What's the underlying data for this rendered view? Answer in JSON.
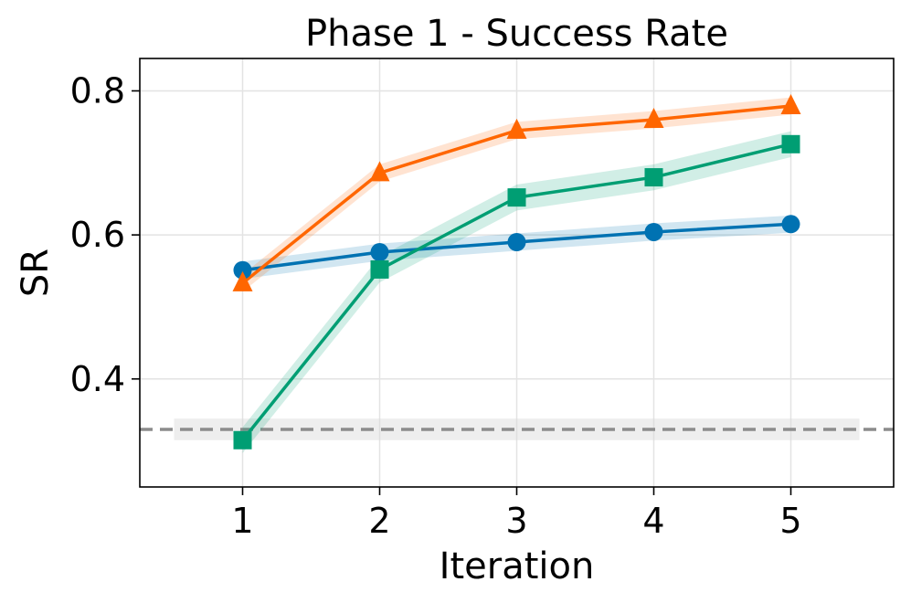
{
  "chart_data": {
    "type": "line",
    "title": "Phase 1 - Success Rate",
    "xlabel": "Iteration",
    "ylabel": "SR",
    "x": [
      1,
      2,
      3,
      4,
      5
    ],
    "x_ticks": [
      "1",
      "2",
      "3",
      "4",
      "5"
    ],
    "y_ticks": [
      "0.4",
      "0.6",
      "0.8"
    ],
    "xlim": [
      0.25,
      5.75
    ],
    "ylim": [
      0.25,
      0.845
    ],
    "grid": true,
    "series": [
      {
        "marker": "circle",
        "color": "#0072B2",
        "values": [
          0.551,
          0.576,
          0.59,
          0.604,
          0.615
        ],
        "band": 0.012
      },
      {
        "marker": "triangle",
        "color": "#FF6600",
        "values": [
          0.533,
          0.686,
          0.745,
          0.76,
          0.779
        ],
        "band": 0.012
      },
      {
        "marker": "square",
        "color": "#009E73",
        "values": [
          0.315,
          0.552,
          0.652,
          0.68,
          0.726
        ],
        "band": 0.018
      }
    ],
    "baseline": {
      "value": 0.33,
      "band": [
        0.315,
        0.345
      ],
      "xrange": [
        0.5,
        5.5
      ],
      "color": "#8c8c8c",
      "style": "dashed"
    }
  }
}
